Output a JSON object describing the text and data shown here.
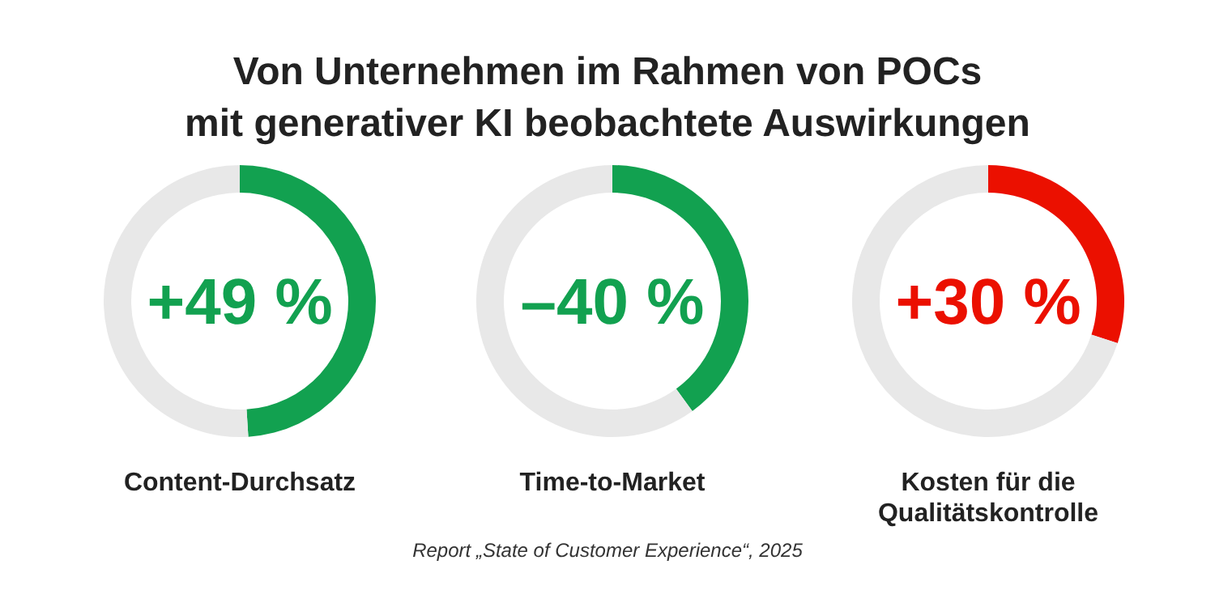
{
  "chart_data": [
    {
      "type": "donut",
      "title": "Von Unternehmen im Rahmen von POCs\nmit generativer KI beobachtete Auswirkungen",
      "xlabel": "Content-Durchsatz",
      "categories": [
        null,
        null
      ],
      "values": [
        49,
        51
      ],
      "colors": [
        "#12a150",
        "#e8e8e8"
      ],
      "annotations": [
        "+49 %"
      ]
    },
    {
      "type": "donut",
      "xlabel": "Time-to-Market",
      "categories": [
        null,
        null
      ],
      "values": [
        40,
        60
      ],
      "colors": [
        "#12a150",
        "#e8e8e8"
      ],
      "annotations": [
        "–40 %"
      ]
    },
    {
      "type": "donut",
      "xlabel": "Kosten für die\nQualitätskontrolle",
      "categories": [
        null,
        null
      ],
      "values": [
        30,
        70
      ],
      "colors": [
        "#eb1000",
        "#e8e8e8"
      ],
      "annotations": [
        "+30 %",
        "Report „State of Customer Experience“, 2025"
      ]
    }
  ]
}
